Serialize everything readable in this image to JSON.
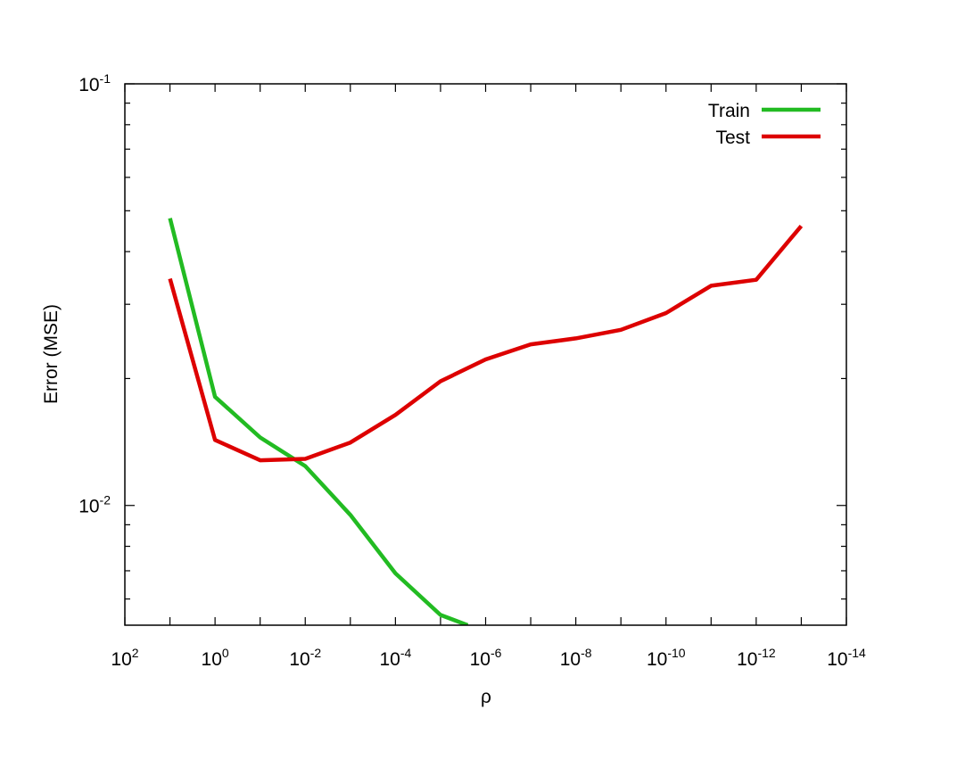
{
  "chart_data": {
    "type": "line",
    "title": "",
    "xlabel": "ρ",
    "ylabel": "Error (MSE)",
    "x_scale": "log",
    "x_reversed": true,
    "y_scale": "log",
    "xlim": [
      100,
      1e-14
    ],
    "ylim": [
      0.0052,
      0.1
    ],
    "grid": false,
    "legend_position": "top-right",
    "x_ticks": [
      {
        "base": "10",
        "exp": "2",
        "value": 100
      },
      {
        "base": "10",
        "exp": "0",
        "value": 1
      },
      {
        "base": "10",
        "exp": "-2",
        "value": 0.01
      },
      {
        "base": "10",
        "exp": "-4",
        "value": 0.0001
      },
      {
        "base": "10",
        "exp": "-6",
        "value": 1e-06
      },
      {
        "base": "10",
        "exp": "-8",
        "value": 1e-08
      },
      {
        "base": "10",
        "exp": "-10",
        "value": 1e-10
      },
      {
        "base": "10",
        "exp": "-12",
        "value": 1e-12
      },
      {
        "base": "10",
        "exp": "-14",
        "value": 1e-14
      }
    ],
    "y_ticks": [
      {
        "base": "10",
        "exp": "-1",
        "value": 0.1
      },
      {
        "base": "10",
        "exp": "-2",
        "value": 0.01
      }
    ],
    "series": [
      {
        "name": "Train",
        "color": "#22bb22",
        "x": [
          10,
          1,
          0.1,
          0.01,
          0.001,
          0.0001,
          1e-05,
          2.5e-06
        ],
        "y": [
          0.048,
          0.0181,
          0.0145,
          0.0124,
          0.0095,
          0.0069,
          0.0055,
          0.0052
        ]
      },
      {
        "name": "Test",
        "color": "#dd0000",
        "x": [
          10,
          1,
          0.1,
          0.01,
          0.001,
          0.0001,
          1e-05,
          1e-06,
          1e-07,
          1e-08,
          1e-09,
          1e-10,
          1e-11,
          1e-12,
          1e-13
        ],
        "y": [
          0.0345,
          0.0143,
          0.0128,
          0.0129,
          0.0141,
          0.0164,
          0.0197,
          0.0222,
          0.0241,
          0.0249,
          0.0261,
          0.0286,
          0.0332,
          0.0343,
          0.046
        ]
      }
    ]
  }
}
